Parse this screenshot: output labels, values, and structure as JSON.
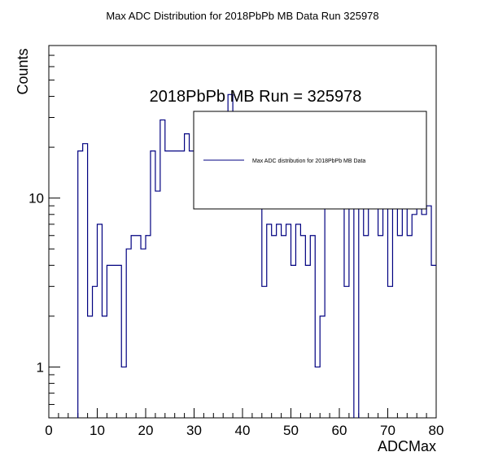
{
  "chart_data": {
    "type": "step-histogram",
    "title": "Max ADC Distribution for 2018PbPb MB Data Run 325978",
    "xlabel": "ADCMax",
    "ylabel": "Counts",
    "annotation": "2018PbPb MB Run = 325978",
    "legend": {
      "placement": "top-right",
      "entries": [
        "Max ADC distribution for 2018PbPb MB Data"
      ]
    },
    "xlim": [
      0,
      80
    ],
    "ylim": [
      0.5,
      80
    ],
    "ylog": true,
    "x_ticks": [
      "0",
      "10",
      "20",
      "30",
      "40",
      "50",
      "60",
      "70",
      "80"
    ],
    "y_ticks": [
      "1",
      "10"
    ],
    "bin_width": 1,
    "series_color": "#000080",
    "series": [
      {
        "x": [
          0,
          1,
          2,
          3,
          4,
          5,
          6,
          7,
          8,
          9,
          10,
          11,
          12,
          13,
          14,
          15,
          16,
          17,
          18,
          19,
          20,
          21,
          22,
          23,
          24,
          25,
          26,
          27,
          28,
          29,
          30,
          31,
          32,
          33,
          34,
          35,
          36,
          37,
          38,
          39,
          40,
          41,
          42,
          43,
          44,
          45,
          46,
          47,
          48,
          49,
          50,
          51,
          52,
          53,
          54,
          55,
          56,
          57,
          58,
          59,
          60,
          61,
          62,
          63,
          64,
          65,
          66,
          67,
          68,
          69,
          70,
          71,
          72,
          73,
          74,
          75,
          76,
          77,
          78,
          79
        ],
        "values": [
          0,
          0,
          0,
          0,
          0,
          0,
          19,
          21,
          2,
          3,
          7,
          2,
          4,
          4,
          4,
          1,
          5,
          6,
          6,
          5,
          6,
          19,
          11,
          29,
          19,
          19,
          19,
          19,
          24,
          19,
          29,
          29,
          25,
          29,
          29,
          29,
          29,
          41,
          29,
          9,
          11,
          11,
          11,
          11,
          3,
          7,
          6,
          7,
          6,
          7,
          4,
          7,
          6,
          4,
          6,
          1,
          2,
          9,
          9,
          9,
          11,
          3,
          9,
          0,
          11,
          6,
          9,
          9,
          6,
          9,
          3,
          9,
          6,
          9,
          6,
          8,
          9,
          8,
          9,
          4
        ]
      }
    ]
  }
}
